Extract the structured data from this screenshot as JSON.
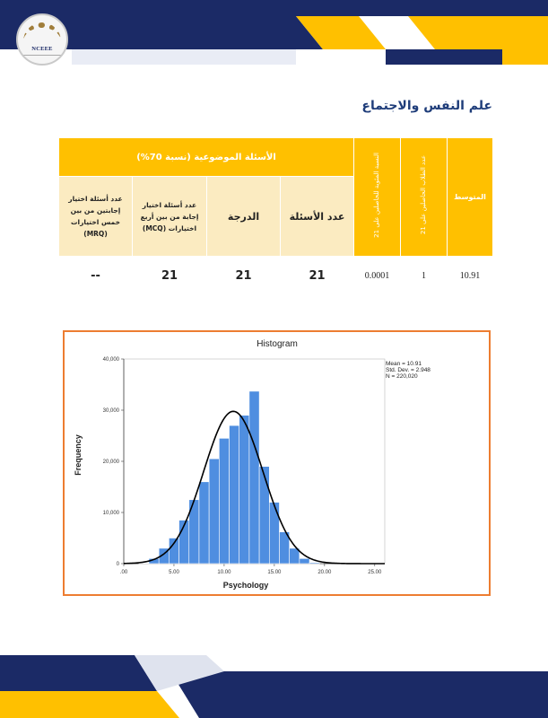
{
  "logo": {
    "text": "NCEEE"
  },
  "section_title": "علم النفس والاجتماع",
  "table": {
    "merged_header": "الأسئلة الموضوعية (نسبة 70%)",
    "col_avg": "المتوسط",
    "col_students": "عدد الطلاب الحاصلين على 21",
    "col_percent": "النسبة المئوية للحاصلين على 21",
    "sub_headers": {
      "count": "عدد الأسئلة",
      "score": "الدرجة",
      "mcq": "عدد أسئلة اختيار إجابة من بين أربع اختيارات (MCQ)",
      "mrq": "عدد أسئلة اختيار إجابتين من بين خمس اختيارات (MRQ)"
    },
    "values": {
      "avg": "10.91",
      "students": "1",
      "percent": "0.0001",
      "count": "21",
      "score": "21",
      "mcq": "21",
      "mrq": "--"
    }
  },
  "colors": {
    "accent_yellow": "#ffc000",
    "accent_navy": "#1b2a66",
    "bar_blue": "#4f8ee0",
    "chart_border": "#ed7d31"
  },
  "chart_data": {
    "type": "bar",
    "title": "Histogram",
    "xlabel": "Psychology",
    "ylabel": "Frequency",
    "xlim": [
      0,
      26
    ],
    "ylim": [
      0,
      40000
    ],
    "xticks": [
      ".00",
      "5.00",
      "10.00",
      "15.00",
      "20.00",
      "25.00"
    ],
    "yticks": [
      "0",
      "10,000",
      "20,000",
      "30,000",
      "40,000"
    ],
    "stats": {
      "mean": "Mean = 10.91",
      "sd": "Std. Dev. = 2.948",
      "n": "N = 220,020"
    },
    "bin_width": 1,
    "bins": [
      {
        "x": 2,
        "y": 100
      },
      {
        "x": 3,
        "y": 1000
      },
      {
        "x": 4,
        "y": 3000
      },
      {
        "x": 5,
        "y": 5000
      },
      {
        "x": 6,
        "y": 8500
      },
      {
        "x": 7,
        "y": 12500
      },
      {
        "x": 8,
        "y": 16000
      },
      {
        "x": 9,
        "y": 20500
      },
      {
        "x": 10,
        "y": 24500
      },
      {
        "x": 11,
        "y": 27000
      },
      {
        "x": 12,
        "y": 29000
      },
      {
        "x": 13,
        "y": 33700
      },
      {
        "x": 14,
        "y": 19000
      },
      {
        "x": 15,
        "y": 12000
      },
      {
        "x": 16,
        "y": 6200
      },
      {
        "x": 17,
        "y": 3000
      },
      {
        "x": 18,
        "y": 1000
      },
      {
        "x": 19,
        "y": 200
      }
    ],
    "normal_curve": {
      "mean": 10.91,
      "sd": 2.948,
      "n": 220020
    }
  }
}
